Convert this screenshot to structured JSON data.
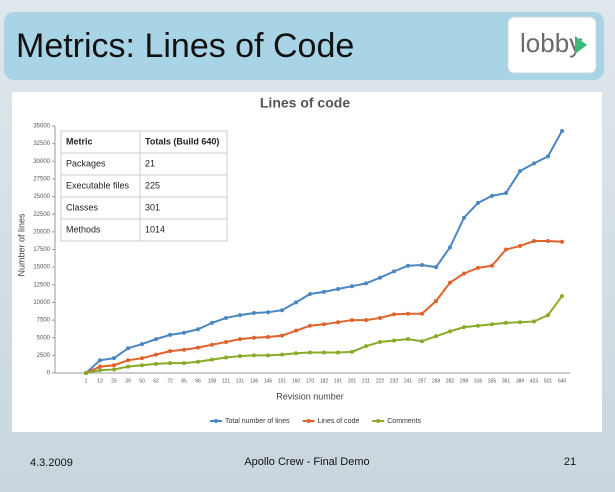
{
  "slide": {
    "title": "Metrics: Lines of Code",
    "logo": "lobby",
    "date": "4.3.2009",
    "footer": "Apollo Crew - Final Demo",
    "page": "21"
  },
  "table": {
    "header": [
      "Metric",
      "Totals (Build 640)"
    ],
    "rows": [
      [
        "Packages",
        "21"
      ],
      [
        "Executable files",
        "225"
      ],
      [
        "Classes",
        "301"
      ],
      [
        "Methods",
        "1014"
      ]
    ]
  },
  "chart_data": {
    "type": "line",
    "title": "Lines of code",
    "x_label": "Revision number",
    "y_label": "Number of lines",
    "categories": [
      "1",
      "13",
      "25",
      "39",
      "50",
      "62",
      "72",
      "85",
      "96",
      "108",
      "121",
      "131",
      "136",
      "145",
      "151",
      "160",
      "170",
      "182",
      "191",
      "201",
      "211",
      "222",
      "232",
      "241",
      "257",
      "268",
      "282",
      "298",
      "316",
      "335",
      "361",
      "389",
      "423",
      "501",
      "640"
    ],
    "series": [
      {
        "name": "Total number of lines",
        "color": "#4a86c0",
        "values": [
          0,
          1800,
          2100,
          3500,
          4100,
          4800,
          5400,
          5700,
          6200,
          7100,
          7800,
          8200,
          8500,
          8600,
          8900,
          10000,
          11200,
          11500,
          11900,
          12300,
          12700,
          13500,
          14400,
          15200,
          15300,
          15000,
          17800,
          22000,
          24100,
          25100,
          25500,
          28600,
          29700,
          30700,
          34300
        ]
      },
      {
        "name": "Lines of code",
        "color": "#e0622c",
        "values": [
          0,
          900,
          1100,
          1800,
          2100,
          2600,
          3100,
          3300,
          3600,
          4000,
          4400,
          4800,
          5000,
          5100,
          5300,
          6000,
          6700,
          6900,
          7200,
          7500,
          7500,
          7800,
          8300,
          8400,
          8400,
          10200,
          12800,
          14100,
          14900,
          15200,
          17500,
          18000,
          18700,
          18700,
          18600
        ]
      },
      {
        "name": "Comments",
        "color": "#8aaa2a",
        "values": [
          0,
          400,
          500,
          900,
          1100,
          1300,
          1400,
          1400,
          1600,
          1900,
          2200,
          2400,
          2500,
          2500,
          2600,
          2800,
          2900,
          2900,
          2900,
          3000,
          3800,
          4400,
          4600,
          4800,
          4500,
          5200,
          5900,
          6500,
          6700,
          6900,
          7100,
          7200,
          7300,
          8200,
          10900
        ]
      }
    ],
    "ylim": [
      0,
      35000
    ],
    "yticks": [
      0,
      2500,
      5000,
      7500,
      10000,
      12500,
      15000,
      17500,
      20000,
      22500,
      25000,
      27500,
      30000,
      32500,
      35000
    ],
    "grid": false,
    "legend": "bottom"
  }
}
